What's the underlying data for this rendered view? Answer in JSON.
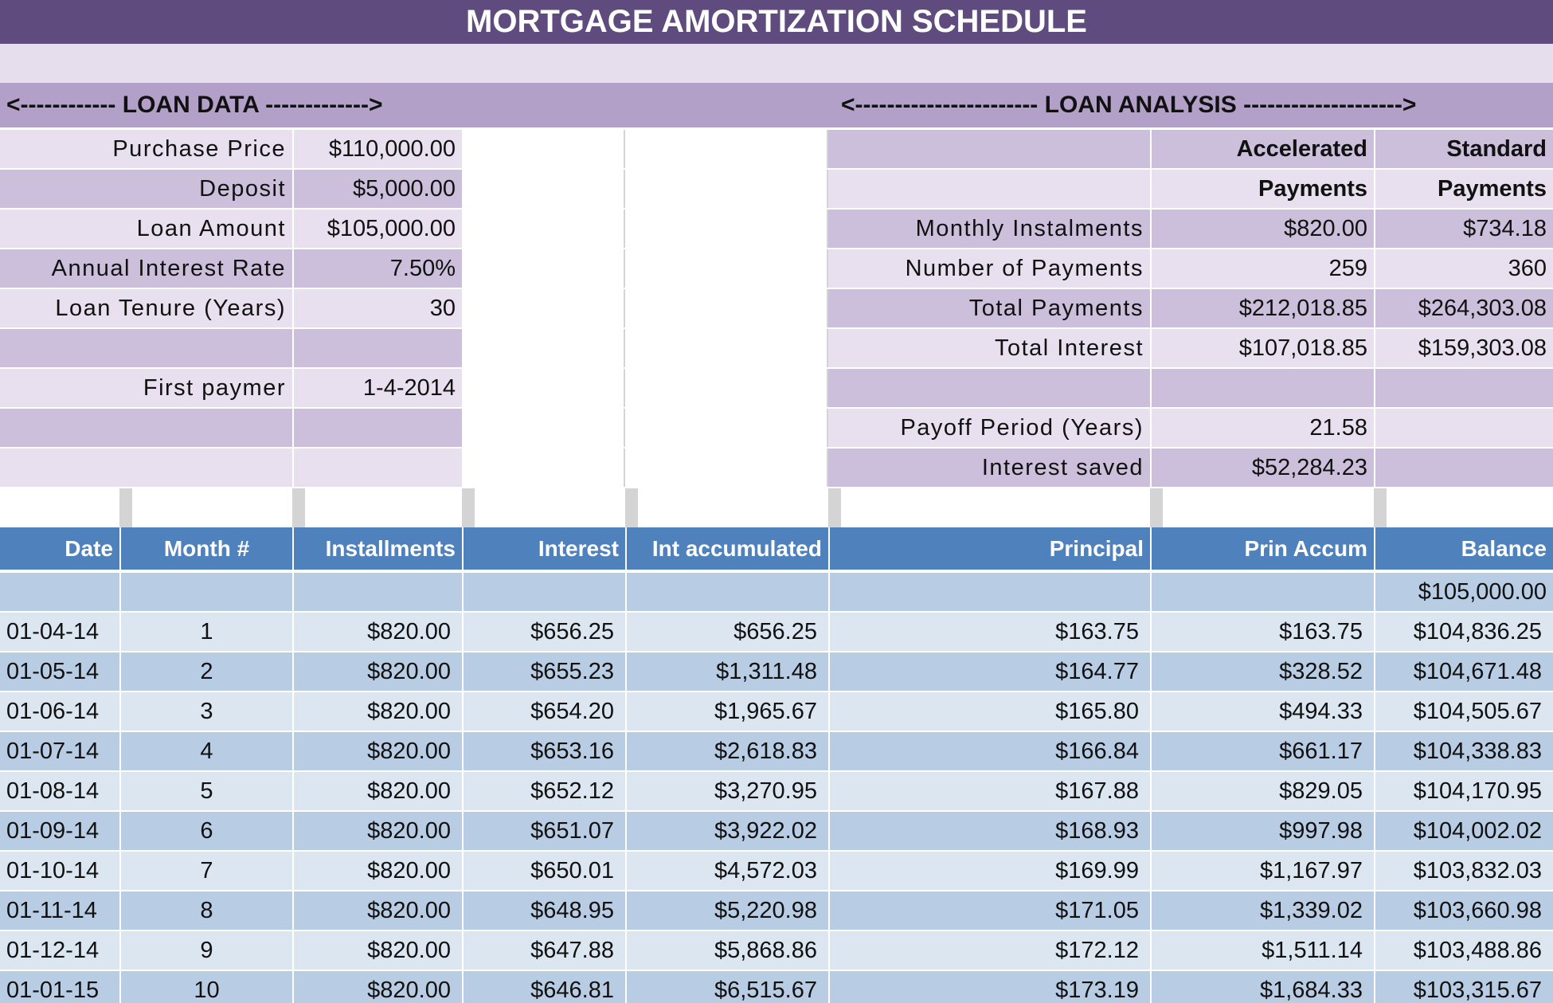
{
  "title": "MORTGAGE AMORTIZATION SCHEDULE",
  "loan_data": {
    "heading": "<------------ LOAN DATA ------------->",
    "rows": [
      {
        "label": "Purchase Price",
        "value": "$110,000.00"
      },
      {
        "label": "Deposit",
        "value": "$5,000.00"
      },
      {
        "label": "Loan Amount",
        "value": "$105,000.00"
      },
      {
        "label": "Annual Interest Rate",
        "value": "7.50%"
      },
      {
        "label": "Loan Tenure (Years)",
        "value": "30"
      },
      null,
      {
        "label": "First paymer",
        "value": "1-4-2014"
      },
      null,
      null
    ]
  },
  "loan_analysis": {
    "heading": "<----------------------- LOAN ANALYSIS -------------------->",
    "rows": [
      {
        "accelerated": "Accelerated",
        "standard": "Standard"
      },
      {
        "accelerated": "Payments",
        "standard": "Payments"
      },
      {
        "label": "Monthly Instalments",
        "accelerated": "$820.00",
        "standard": "$734.18"
      },
      {
        "label": "Number of Payments",
        "accelerated": "259",
        "standard": "360"
      },
      {
        "label": "Total Payments",
        "accelerated": "$212,018.85",
        "standard": "$264,303.08"
      },
      {
        "label": "Total Interest",
        "accelerated": "$107,018.85",
        "standard": "$159,303.08"
      },
      null,
      {
        "label": "Payoff Period (Years)",
        "accelerated": "21.58"
      },
      {
        "label": "Interest saved",
        "accelerated": "$52,284.23"
      }
    ]
  },
  "schedule": {
    "columns": [
      "Date",
      "Month #",
      "Installments",
      "Interest",
      "Int accumulated",
      "Principal",
      "Prin Accum",
      "Balance"
    ],
    "opening_balance": "$105,000.00",
    "rows": [
      [
        "01-04-14",
        1,
        "$820.00",
        "$656.25",
        "$656.25",
        "$163.75",
        "$163.75",
        "$104,836.25"
      ],
      [
        "01-05-14",
        2,
        "$820.00",
        "$655.23",
        "$1,311.48",
        "$164.77",
        "$328.52",
        "$104,671.48"
      ],
      [
        "01-06-14",
        3,
        "$820.00",
        "$654.20",
        "$1,965.67",
        "$165.80",
        "$494.33",
        "$104,505.67"
      ],
      [
        "01-07-14",
        4,
        "$820.00",
        "$653.16",
        "$2,618.83",
        "$166.84",
        "$661.17",
        "$104,338.83"
      ],
      [
        "01-08-14",
        5,
        "$820.00",
        "$652.12",
        "$3,270.95",
        "$167.88",
        "$829.05",
        "$104,170.95"
      ],
      [
        "01-09-14",
        6,
        "$820.00",
        "$651.07",
        "$3,922.02",
        "$168.93",
        "$997.98",
        "$104,002.02"
      ],
      [
        "01-10-14",
        7,
        "$820.00",
        "$650.01",
        "$4,572.03",
        "$169.99",
        "$1,167.97",
        "$103,832.03"
      ],
      [
        "01-11-14",
        8,
        "$820.00",
        "$648.95",
        "$5,220.98",
        "$171.05",
        "$1,339.02",
        "$103,660.98"
      ],
      [
        "01-12-14",
        9,
        "$820.00",
        "$647.88",
        "$5,868.86",
        "$172.12",
        "$1,511.14",
        "$103,488.86"
      ],
      [
        "01-01-15",
        10,
        "$820.00",
        "$646.81",
        "$6,515.67",
        "$173.19",
        "$1,684.33",
        "$103,315.67"
      ]
    ]
  }
}
